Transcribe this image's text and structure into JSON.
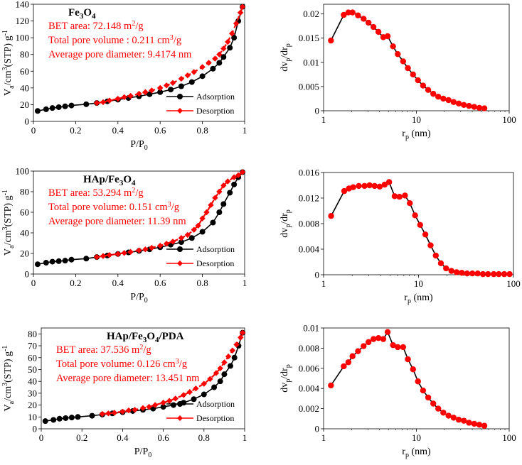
{
  "figure": {
    "panels": [
      {
        "kind": "isotherm",
        "xlabel_main": "P/P",
        "xlabel_sub": "0",
        "ylabel_main": "V",
        "ylabel_sub": "a",
        "ylabel_mid": "/cm",
        "ylabel_sup": "3",
        "ylabel_tail": "(STP) g",
        "ylabel_sup2": "-1",
        "title_parts": [
          "Fe",
          "3",
          "O",
          "4"
        ],
        "bet": "BET area: 72.148 m",
        "bet_sup": "2",
        "bet_tail": "/g",
        "pore_vol": "Total pore volume : 0.211 cm",
        "pore_vol_sup": "3",
        "pore_vol_tail": "/g",
        "pore_diam": "Average pore diameter: 9.4174 nm",
        "legend": [
          "Adsorption",
          "Desorption"
        ]
      },
      {
        "kind": "psd",
        "xlabel_main": "r",
        "xlabel_sub": "p",
        "xlabel_tail": " (nm)",
        "ylabel_main": "dv",
        "ylabel_sub": "p",
        "ylabel_mid": "/dr",
        "ylabel_sub2": "p"
      },
      {
        "kind": "isotherm",
        "xlabel_main": "P/P",
        "xlabel_sub": "0",
        "ylabel_main": "V",
        "ylabel_sub": "a",
        "ylabel_mid": "/cm",
        "ylabel_sup": "3",
        "ylabel_tail": "(STP) g",
        "ylabel_sup2": "-1",
        "title_parts": [
          "HAp/Fe",
          "3",
          "O",
          "4"
        ],
        "bet": "BET area: 53.294 m",
        "bet_sup": "2",
        "bet_tail": "/g",
        "pore_vol": "Total pore volume: 0.151 cm",
        "pore_vol_sup": "3",
        "pore_vol_tail": "/g",
        "pore_diam": "Average pore diameter: 11.39 nm",
        "legend": [
          "Adsorption",
          "Desorption"
        ]
      },
      {
        "kind": "psd",
        "xlabel_main": "r",
        "xlabel_sub": "p",
        "xlabel_tail": " (nm)",
        "ylabel_main": "dv",
        "ylabel_sub": "p",
        "ylabel_mid": "/dr",
        "ylabel_sub2": "p"
      },
      {
        "kind": "isotherm",
        "xlabel_main": "P/P",
        "xlabel_sub": "0",
        "ylabel_main": "V",
        "ylabel_sub": "a",
        "ylabel_mid": "/cm",
        "ylabel_sup": "3",
        "ylabel_tail": "(STP) g",
        "ylabel_sup2": "-1",
        "title_parts": [
          "HAp/Fe",
          "3",
          "O",
          "4",
          "/PDA"
        ],
        "bet": "BET area: 37.536 m",
        "bet_sup": "2",
        "bet_tail": "/g",
        "pore_vol": "Total pore volume: 0.126 cm",
        "pore_vol_sup": "3",
        "pore_vol_tail": "/g",
        "pore_diam": "Average pore diameter: 13.451 nm",
        "legend": [
          "Adsorption",
          "Desorption"
        ]
      },
      {
        "kind": "psd",
        "xlabel_main": "r",
        "xlabel_sub": "p",
        "xlabel_tail": " (nm)",
        "ylabel_main": "dv",
        "ylabel_sub": "p",
        "ylabel_mid": "/dr",
        "ylabel_sub2": "p"
      }
    ]
  },
  "colors": {
    "adsorption": "#000000",
    "desorption": "#ff0000",
    "annotation": "#ff0000",
    "axis": "#000000"
  },
  "chart_data": [
    {
      "type": "line",
      "sample": "Fe3O4",
      "xlim": [
        0,
        1
      ],
      "ylim": [
        0,
        140
      ],
      "xticks": [
        "0",
        "0.2",
        "0.4",
        "0.6",
        "0.8",
        "1"
      ],
      "yticks": [
        "0",
        "20",
        "40",
        "60",
        "80",
        "100",
        "120",
        "140"
      ],
      "series": [
        {
          "name": "Adsorption",
          "x": [
            0.02,
            0.06,
            0.09,
            0.12,
            0.15,
            0.18,
            0.25,
            0.3,
            0.35,
            0.4,
            0.45,
            0.5,
            0.55,
            0.6,
            0.65,
            0.7,
            0.75,
            0.8,
            0.85,
            0.88,
            0.9,
            0.93,
            0.95,
            0.97,
            0.99
          ],
          "y": [
            12.5,
            14.5,
            16,
            17,
            18,
            19,
            20.5,
            22,
            24,
            26,
            28,
            30,
            32.5,
            35,
            38,
            42,
            47,
            54,
            63,
            70,
            77,
            88,
            100,
            120,
            137
          ]
        },
        {
          "name": "Desorption",
          "x": [
            0.3,
            0.33,
            0.36,
            0.4,
            0.43,
            0.46,
            0.5,
            0.53,
            0.56,
            0.6,
            0.63,
            0.66,
            0.7,
            0.73,
            0.76,
            0.8,
            0.83,
            0.86,
            0.88,
            0.9,
            0.92,
            0.94,
            0.96,
            0.98,
            0.99
          ],
          "y": [
            22,
            23,
            25,
            27,
            29,
            30.5,
            33,
            35,
            37,
            40,
            43,
            46,
            51,
            55,
            59,
            65,
            70,
            75,
            80,
            87,
            95,
            105,
            117,
            130,
            137
          ]
        }
      ]
    },
    {
      "type": "line",
      "sample": "Fe3O4",
      "xscale": "log",
      "xlim": [
        1,
        100
      ],
      "ylim": [
        0,
        0.022
      ],
      "xticks": [
        "1",
        "10",
        "100"
      ],
      "yticks": [
        "0",
        "0.005",
        "0.01",
        "0.015",
        "0.02"
      ],
      "series": [
        {
          "name": "PSD",
          "x": [
            1.2,
            1.65,
            1.85,
            2.05,
            2.35,
            2.7,
            3.05,
            3.45,
            3.9,
            4.4,
            4.9,
            5.6,
            6.3,
            7.2,
            8.1,
            9.2,
            10.4,
            11.8,
            13.4,
            15.2,
            17.2,
            19.5,
            22.2,
            25.2,
            28.6,
            32.5,
            36.9,
            42,
            47.7,
            54
          ],
          "y": [
            0.0145,
            0.0198,
            0.0203,
            0.0203,
            0.0197,
            0.019,
            0.0182,
            0.0173,
            0.0163,
            0.0152,
            0.0154,
            0.0133,
            0.0117,
            0.0102,
            0.0088,
            0.0075,
            0.0063,
            0.0052,
            0.0043,
            0.0035,
            0.0029,
            0.0025,
            0.0022,
            0.0018,
            0.0015,
            0.0012,
            0.001,
            0.0008,
            0.0006,
            0.0005
          ]
        }
      ]
    },
    {
      "type": "line",
      "sample": "HAp/Fe3O4",
      "xlim": [
        0,
        1
      ],
      "ylim": [
        0,
        100
      ],
      "xticks": [
        "0",
        "0.2",
        "0.4",
        "0.6",
        "0.8",
        "1"
      ],
      "yticks": [
        "0",
        "20",
        "40",
        "60",
        "80",
        "100"
      ],
      "series": [
        {
          "name": "Adsorption",
          "x": [
            0.02,
            0.06,
            0.09,
            0.12,
            0.15,
            0.18,
            0.25,
            0.3,
            0.35,
            0.4,
            0.45,
            0.5,
            0.55,
            0.6,
            0.65,
            0.7,
            0.75,
            0.8,
            0.85,
            0.88,
            0.9,
            0.93,
            0.95,
            0.97,
            0.99
          ],
          "y": [
            9.5,
            11,
            12,
            12.5,
            13,
            14,
            15,
            16.5,
            18,
            19.5,
            21,
            22.5,
            24,
            26,
            28.5,
            31,
            35,
            41,
            50,
            60,
            68,
            79,
            87,
            94,
            99
          ]
        },
        {
          "name": "Desorption",
          "x": [
            0.3,
            0.33,
            0.36,
            0.4,
            0.43,
            0.46,
            0.5,
            0.53,
            0.56,
            0.6,
            0.63,
            0.66,
            0.7,
            0.73,
            0.76,
            0.78,
            0.8,
            0.82,
            0.84,
            0.86,
            0.88,
            0.9,
            0.92,
            0.95,
            0.97,
            0.99
          ],
          "y": [
            16.5,
            17.5,
            18.5,
            19.5,
            20.5,
            21.5,
            23,
            24,
            25.5,
            27.5,
            29.5,
            31.5,
            35,
            38,
            43,
            47,
            54,
            60,
            67,
            74,
            80,
            86,
            90,
            94,
            96,
            99
          ]
        }
      ]
    },
    {
      "type": "line",
      "sample": "HAp/Fe3O4",
      "xscale": "log",
      "xlim": [
        1,
        100
      ],
      "ylim": [
        0,
        0.016
      ],
      "xticks": [
        "1",
        "10",
        "100"
      ],
      "yticks": [
        "0",
        "0.004",
        "0.008",
        "0.012",
        "0.016"
      ],
      "series": [
        {
          "name": "PSD",
          "x": [
            1.2,
            1.65,
            1.85,
            2.05,
            2.35,
            2.7,
            3.05,
            3.45,
            3.9,
            4.4,
            4.9,
            5.6,
            6.3,
            7.2,
            8.1,
            9.2,
            10.4,
            11.8,
            13.4,
            15.2,
            17.2,
            19.5,
            22.2,
            25.2,
            28.6,
            32.5,
            36.9,
            42,
            47.7,
            54,
            62,
            70,
            80,
            91
          ],
          "y": [
            0.0092,
            0.0131,
            0.0135,
            0.0137,
            0.0139,
            0.0139,
            0.014,
            0.0139,
            0.0138,
            0.0141,
            0.0145,
            0.0123,
            0.0122,
            0.0124,
            0.0112,
            0.0093,
            0.0078,
            0.0063,
            0.0046,
            0.003,
            0.0018,
            0.001,
            0.0006,
            0.0004,
            0.0003,
            0.0002,
            0.0002,
            0.0002,
            0.0001,
            0.0001,
            0.0001,
            0.0001,
            0.0001,
            0.0001
          ]
        }
      ]
    },
    {
      "type": "line",
      "sample": "HAp/Fe3O4/PDA",
      "xlim": [
        0,
        1
      ],
      "ylim": [
        0,
        85
      ],
      "xticks": [
        "0",
        "0.2",
        "0.4",
        "0.6",
        "0.8",
        "1"
      ],
      "yticks": [
        "0",
        "10",
        "20",
        "30",
        "40",
        "50",
        "60",
        "70",
        "80"
      ],
      "series": [
        {
          "name": "Adsorption",
          "x": [
            0.02,
            0.06,
            0.09,
            0.12,
            0.15,
            0.18,
            0.25,
            0.3,
            0.35,
            0.4,
            0.45,
            0.5,
            0.55,
            0.6,
            0.65,
            0.7,
            0.75,
            0.8,
            0.85,
            0.88,
            0.9,
            0.93,
            0.95,
            0.97,
            0.99
          ],
          "y": [
            6.5,
            7.5,
            8.5,
            9,
            9.5,
            10,
            11,
            12,
            13,
            14,
            15,
            16,
            17,
            18.5,
            20,
            22,
            25,
            29,
            35,
            40,
            46,
            53,
            60,
            70,
            81
          ]
        },
        {
          "name": "Desorption",
          "x": [
            0.3,
            0.33,
            0.36,
            0.4,
            0.43,
            0.46,
            0.5,
            0.53,
            0.56,
            0.6,
            0.63,
            0.66,
            0.7,
            0.73,
            0.76,
            0.8,
            0.83,
            0.86,
            0.88,
            0.9,
            0.92,
            0.94,
            0.96,
            0.98,
            0.99
          ],
          "y": [
            12.5,
            13,
            13.5,
            14.5,
            15.5,
            16,
            17.5,
            18.5,
            20,
            22,
            23.5,
            25.5,
            28.5,
            31,
            34,
            38,
            42,
            47,
            51,
            56,
            61,
            66,
            71,
            77,
            81
          ]
        }
      ]
    },
    {
      "type": "line",
      "sample": "HAp/Fe3O4/PDA",
      "xscale": "log",
      "xlim": [
        1,
        100
      ],
      "ylim": [
        0,
        0.01
      ],
      "xticks": [
        "1",
        "10",
        "100"
      ],
      "yticks": [
        "0",
        "0.002",
        "0.004",
        "0.006",
        "0.008",
        "0.01"
      ],
      "series": [
        {
          "name": "PSD",
          "x": [
            1.2,
            1.65,
            1.85,
            2.05,
            2.35,
            2.7,
            3.05,
            3.45,
            3.9,
            4.4,
            4.9,
            5.6,
            6.3,
            7.2,
            8.1,
            9.2,
            10.4,
            11.8,
            13.4,
            15.2,
            17.2,
            19.5,
            22.2,
            25.2,
            28.6,
            32.5,
            36.9,
            42,
            47.7,
            54
          ],
          "y": [
            0.0043,
            0.0062,
            0.0066,
            0.0072,
            0.0077,
            0.0082,
            0.0086,
            0.0089,
            0.009,
            0.0089,
            0.0096,
            0.0083,
            0.0081,
            0.0081,
            0.0069,
            0.0059,
            0.0047,
            0.0038,
            0.0031,
            0.0025,
            0.002,
            0.0016,
            0.0013,
            0.0011,
            0.0009,
            0.0008,
            0.0006,
            0.0005,
            0.0004,
            0.0003
          ]
        }
      ]
    }
  ]
}
